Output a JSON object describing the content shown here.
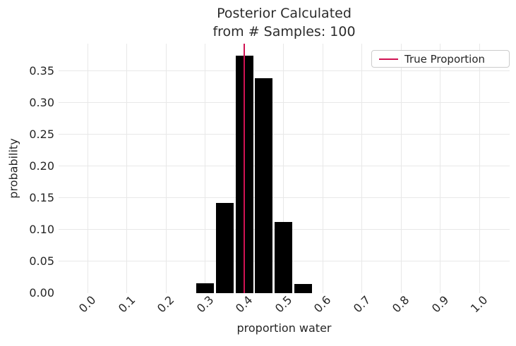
{
  "title": {
    "line1": "Posterior Calculated",
    "line2": "from # Samples: 100"
  },
  "legend": {
    "label": "True Proportion"
  },
  "colors": {
    "bar": "#000000",
    "true_proportion_line": "#d01252",
    "grid": "#e8e8e8",
    "text": "#262626",
    "legend_border": "#cccccc"
  },
  "chart_data": {
    "type": "bar",
    "title": "Posterior Calculated from # Samples: 100",
    "xlabel": "proportion water",
    "ylabel": "probability",
    "x": [
      0.3,
      0.35,
      0.4,
      0.45,
      0.5,
      0.55
    ],
    "values": [
      0.016,
      0.142,
      0.374,
      0.339,
      0.112,
      0.014
    ],
    "bar_width": 0.045,
    "bar_color": "#000000",
    "xlim": [
      -0.074,
      1.077
    ],
    "ylim": [
      0,
      0.393
    ],
    "x_ticks": [
      {
        "v": 0.0,
        "label": "0.0"
      },
      {
        "v": 0.1,
        "label": "0.1"
      },
      {
        "v": 0.2,
        "label": "0.2"
      },
      {
        "v": 0.3,
        "label": "0.3"
      },
      {
        "v": 0.4,
        "label": "0.4"
      },
      {
        "v": 0.5,
        "label": "0.5"
      },
      {
        "v": 0.6,
        "label": "0.6"
      },
      {
        "v": 0.7,
        "label": "0.7"
      },
      {
        "v": 0.8,
        "label": "0.8"
      },
      {
        "v": 0.9,
        "label": "0.9"
      },
      {
        "v": 1.0,
        "label": "1.0"
      }
    ],
    "y_ticks": [
      {
        "v": 0.0,
        "label": "0.00"
      },
      {
        "v": 0.05,
        "label": "0.05"
      },
      {
        "v": 0.1,
        "label": "0.10"
      },
      {
        "v": 0.15,
        "label": "0.15"
      },
      {
        "v": 0.2,
        "label": "0.20"
      },
      {
        "v": 0.25,
        "label": "0.25"
      },
      {
        "v": 0.3,
        "label": "0.30"
      },
      {
        "v": 0.35,
        "label": "0.35"
      }
    ],
    "grid": true,
    "vline": {
      "x": 0.4,
      "color": "#d01252",
      "label": "True Proportion"
    },
    "legend_position": "upper right"
  }
}
